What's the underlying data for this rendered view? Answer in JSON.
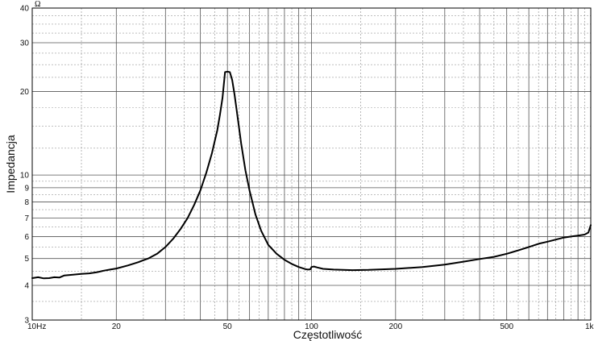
{
  "chart_data": {
    "type": "line",
    "xlabel": "Częstotliwość",
    "ylabel": "Impedancja",
    "yunit": "Ω",
    "xscale": "log",
    "yscale": "log",
    "xlim": [
      10,
      1000
    ],
    "ylim": [
      3,
      40
    ],
    "grid": true,
    "x_ticks": [
      {
        "value": 10,
        "label": "10Hz"
      },
      {
        "value": 20,
        "label": "20"
      },
      {
        "value": 50,
        "label": "50"
      },
      {
        "value": 100,
        "label": "100"
      },
      {
        "value": 200,
        "label": "200"
      },
      {
        "value": 500,
        "label": "500"
      },
      {
        "value": 1000,
        "label": "1k"
      }
    ],
    "y_ticks": [
      {
        "value": 3,
        "label": "3"
      },
      {
        "value": 4,
        "label": "4"
      },
      {
        "value": 5,
        "label": "5"
      },
      {
        "value": 6,
        "label": "6"
      },
      {
        "value": 7,
        "label": "7"
      },
      {
        "value": 8,
        "label": "8"
      },
      {
        "value": 9,
        "label": "9"
      },
      {
        "value": 10,
        "label": "10"
      },
      {
        "value": 20,
        "label": "20"
      },
      {
        "value": 30,
        "label": "30"
      },
      {
        "value": 40,
        "label": "40"
      }
    ],
    "series": [
      {
        "x": [
          10,
          10.5,
          11,
          11.5,
          12,
          12.5,
          13,
          14,
          15,
          16,
          17,
          18,
          19,
          20,
          22,
          24,
          25,
          26,
          28,
          30,
          32,
          34,
          36,
          38,
          40,
          42,
          44,
          45,
          46,
          47,
          48,
          49,
          50,
          51,
          52,
          53,
          54,
          56,
          58,
          60,
          63,
          66,
          70,
          75,
          80,
          85,
          90,
          95,
          97,
          99,
          100,
          102,
          105,
          110,
          120,
          140,
          160,
          200,
          250,
          300,
          350,
          400,
          450,
          500,
          550,
          600,
          650,
          700,
          750,
          800,
          850,
          900,
          950,
          980,
          1000
        ],
        "y": [
          4.25,
          4.28,
          4.24,
          4.25,
          4.28,
          4.27,
          4.34,
          4.37,
          4.4,
          4.42,
          4.46,
          4.52,
          4.56,
          4.6,
          4.72,
          4.85,
          4.93,
          5.0,
          5.2,
          5.5,
          5.9,
          6.4,
          7.0,
          7.8,
          8.8,
          10.2,
          12.0,
          13.2,
          14.5,
          16.5,
          19.0,
          23.5,
          23.6,
          23.5,
          22.0,
          19.5,
          17.0,
          13.0,
          10.4,
          8.8,
          7.2,
          6.3,
          5.6,
          5.2,
          4.95,
          4.78,
          4.66,
          4.58,
          4.56,
          4.57,
          4.66,
          4.68,
          4.64,
          4.59,
          4.56,
          4.54,
          4.55,
          4.59,
          4.66,
          4.75,
          4.87,
          4.98,
          5.07,
          5.2,
          5.35,
          5.5,
          5.65,
          5.75,
          5.85,
          5.95,
          6.0,
          6.05,
          6.1,
          6.2,
          6.6
        ]
      }
    ]
  }
}
